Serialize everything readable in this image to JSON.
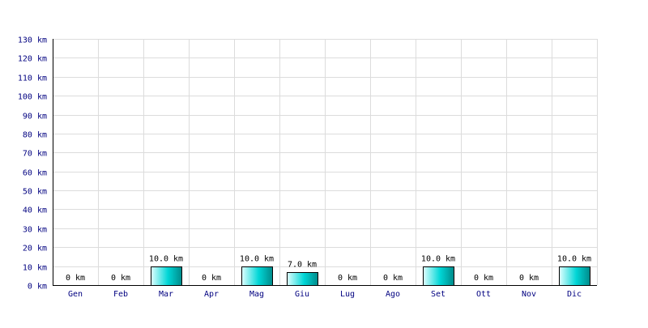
{
  "chart_data": {
    "type": "bar",
    "categories": [
      "Gen",
      "Feb",
      "Mar",
      "Apr",
      "Mag",
      "Giu",
      "Lug",
      "Ago",
      "Set",
      "Ott",
      "Nov",
      "Dic"
    ],
    "values": [
      0,
      0,
      10,
      0,
      10,
      7,
      0,
      0,
      10,
      0,
      0,
      10
    ],
    "data_labels": [
      "0 km",
      "0 km",
      "10.0 km",
      "0 km",
      "10.0 km",
      "7.0 km",
      "0 km",
      "0 km",
      "10.0 km",
      "0 km",
      "0 km",
      "10.0 km"
    ],
    "y_ticks": [
      "0 km",
      "10 km",
      "20 km",
      "30 km",
      "40 km",
      "50 km",
      "60 km",
      "70 km",
      "80 km",
      "90 km",
      "100 km",
      "110 km",
      "120 km",
      "130 km"
    ],
    "ylim": [
      0,
      130
    ],
    "grid": true,
    "title": "",
    "xlabel": "",
    "ylabel": "",
    "colors": {
      "bar_light": "#e0ffff",
      "bar_mid": "#00d6d6",
      "bar_dark": "#008a8a",
      "grid": "#dcdcdc",
      "tick_text": "#000080",
      "label_text": "#000000"
    }
  }
}
